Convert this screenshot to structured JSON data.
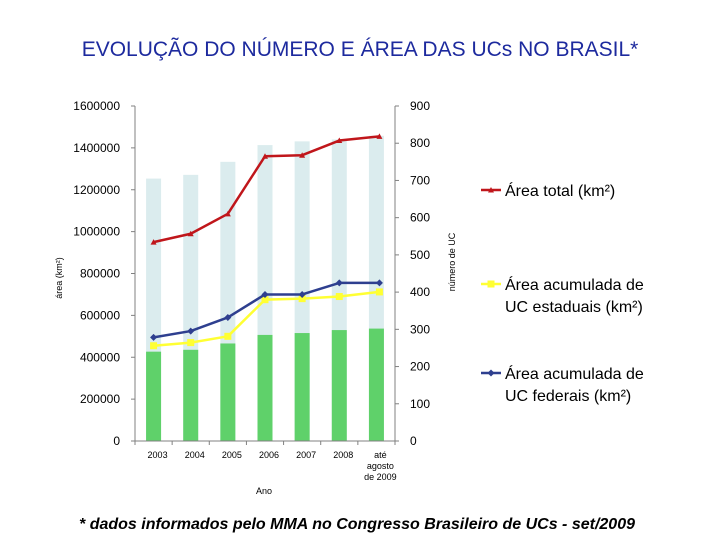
{
  "chart_data": {
    "type": "bar+line",
    "title": "EVOLUÇÃO DO NÚMERO E ÁREA DAS UCs NO BRASIL*",
    "categories": [
      "2003",
      "2004",
      "2005",
      "2006",
      "2007",
      "2008",
      "até agosto de 2009"
    ],
    "xlabel": "Ano",
    "ylabel_left": "área (km²)",
    "ylabel_right": "número de UC",
    "ylim_left": [
      0,
      1600000
    ],
    "ylim_right": [
      0,
      900
    ],
    "yticks_left": [
      "0",
      "200000",
      "400000",
      "600000",
      "800000",
      "1000000",
      "1200000",
      "1400000",
      "1600000"
    ],
    "yticks_right": [
      "0",
      "100",
      "200",
      "300",
      "400",
      "500",
      "600",
      "700",
      "800",
      "900"
    ],
    "bars": [
      {
        "name": "",
        "color": "#dbecee",
        "axis": "right",
        "values": [
          705,
          715,
          750,
          795,
          805,
          810,
          820
        ]
      },
      {
        "name": "",
        "color": "#5fd16a",
        "axis": "right",
        "values": [
          240,
          245,
          262,
          285,
          290,
          298,
          302
        ]
      }
    ],
    "series": [
      {
        "name": "Área total (km²)",
        "color": "#c0161b",
        "axis": "left",
        "marker": "triangle",
        "values": [
          950000,
          990000,
          1085000,
          1360000,
          1365000,
          1435000,
          1455000
        ]
      },
      {
        "name": "Área acumulada de UC estaduais (km²)",
        "color": "#ffff33",
        "axis": "left",
        "marker": "square",
        "values": [
          455000,
          470000,
          500000,
          675000,
          680000,
          690000,
          712000
        ]
      },
      {
        "name": "Área acumulada de UC federais (km²)",
        "color": "#2e3f8f",
        "axis": "left",
        "marker": "diamond",
        "values": [
          495000,
          525000,
          590000,
          700000,
          700000,
          755000,
          755000
        ]
      }
    ],
    "legend": [
      "Área total (km²)",
      "Área acumulada de UC estaduais (km²)",
      "Área acumulada de UC federais (km²)"
    ],
    "legend_position": "right",
    "grid": false,
    "footnote": "* dados informados pelo MMA no Congresso Brasileiro de UCs - set/2009"
  }
}
